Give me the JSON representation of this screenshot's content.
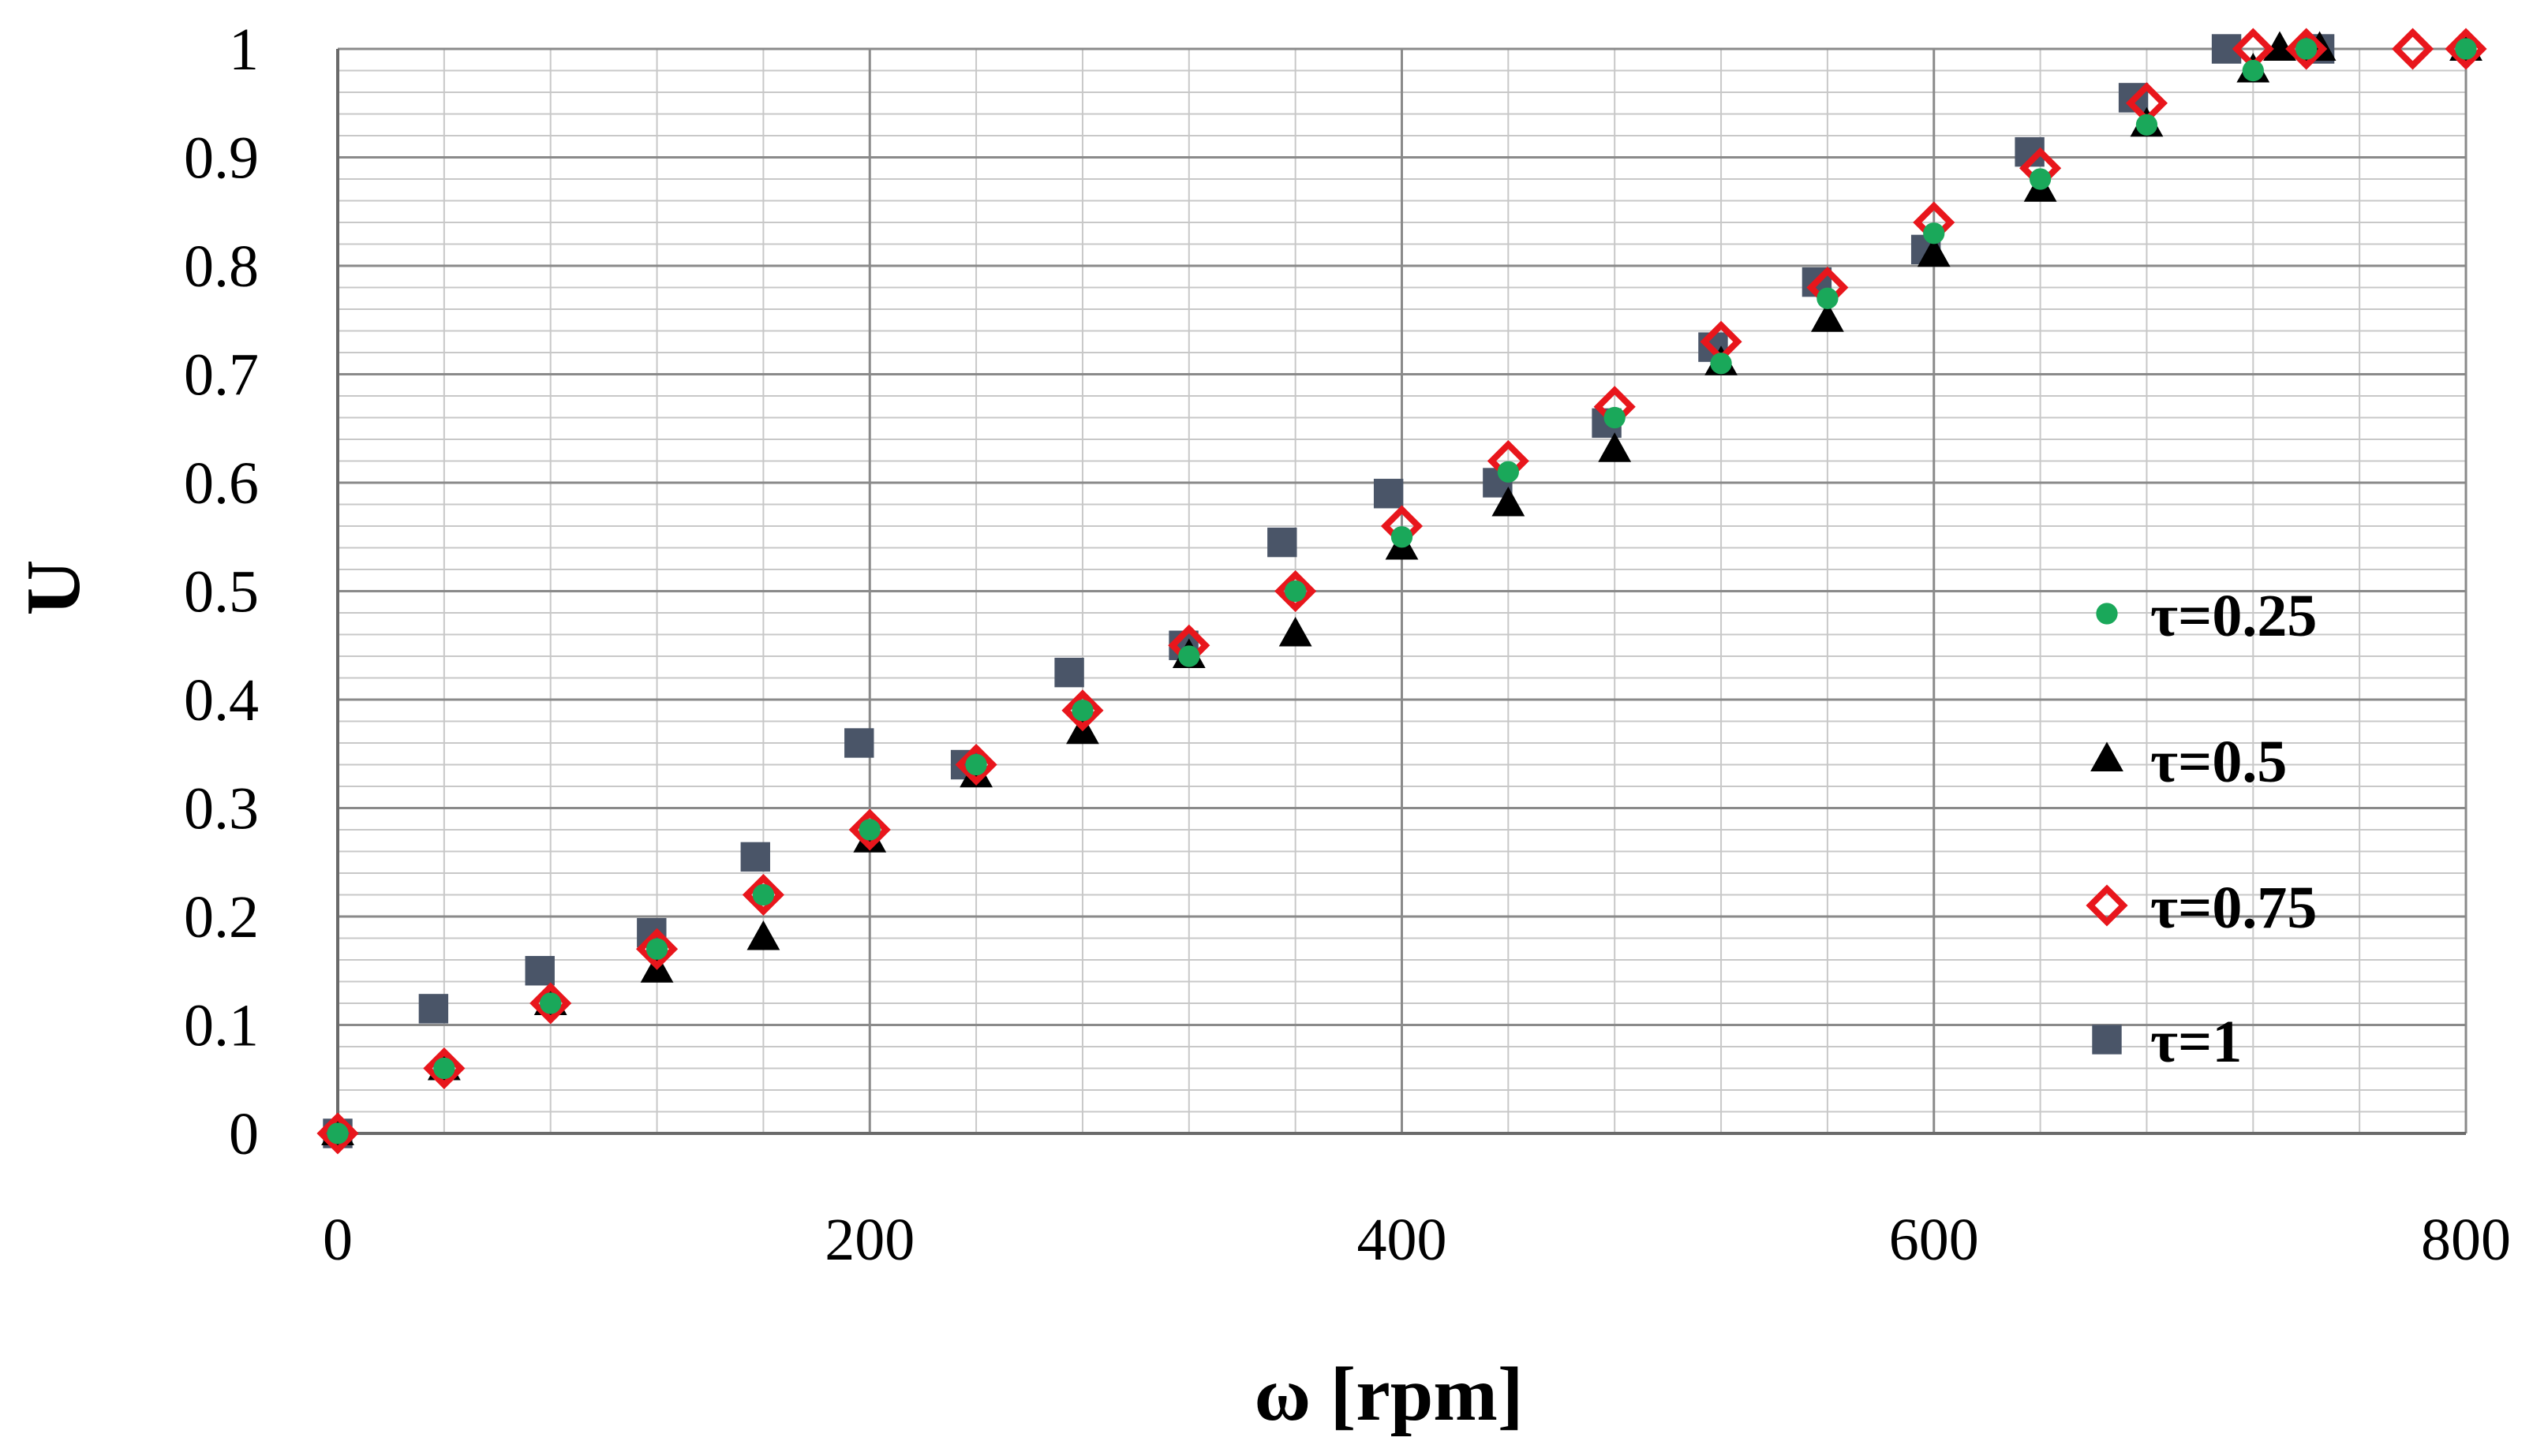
{
  "chart_data": {
    "type": "scatter",
    "title": "",
    "xlabel": "ω [rpm]",
    "ylabel": "U",
    "xlim": [
      0,
      800
    ],
    "ylim": [
      0,
      1
    ],
    "x_ticks": [
      0,
      200,
      400,
      600,
      800
    ],
    "y_ticks": [
      0,
      0.1,
      0.2,
      0.3,
      0.4,
      0.5,
      0.6,
      0.7,
      0.8,
      0.9,
      1
    ],
    "x_tick_labels": [
      "0",
      "200",
      "400",
      "600",
      "800"
    ],
    "y_tick_labels": [
      "0",
      "0.1",
      "0.2",
      "0.3",
      "0.4",
      "0.5",
      "0.6",
      "0.7",
      "0.8",
      "0.9",
      "1"
    ],
    "grid": true,
    "legend_position": "right",
    "series": [
      {
        "name": "τ=0.25",
        "marker": "circle",
        "color": "#1aa85a",
        "x": [
          0,
          40,
          80,
          120,
          160,
          200,
          240,
          280,
          320,
          360,
          400,
          440,
          480,
          520,
          560,
          600,
          640,
          680,
          720,
          740,
          800
        ],
        "y": [
          0,
          0.06,
          0.12,
          0.17,
          0.22,
          0.28,
          0.34,
          0.39,
          0.44,
          0.5,
          0.55,
          0.61,
          0.66,
          0.71,
          0.77,
          0.83,
          0.88,
          0.93,
          0.98,
          1.0,
          1.0
        ]
      },
      {
        "name": "τ=0.5",
        "marker": "triangle",
        "color": "#000000",
        "x": [
          0,
          40,
          80,
          120,
          160,
          200,
          240,
          280,
          320,
          360,
          400,
          440,
          480,
          520,
          560,
          600,
          640,
          680,
          720,
          730,
          745,
          800
        ],
        "y": [
          0,
          0.06,
          0.12,
          0.15,
          0.18,
          0.27,
          0.33,
          0.37,
          0.44,
          0.46,
          0.54,
          0.58,
          0.63,
          0.71,
          0.75,
          0.81,
          0.87,
          0.93,
          0.98,
          1.0,
          1.0,
          1.0
        ]
      },
      {
        "name": "τ=0.75",
        "marker": "diamond-open",
        "color": "#e8161c",
        "x": [
          0,
          40,
          80,
          120,
          160,
          200,
          240,
          280,
          320,
          360,
          400,
          440,
          480,
          520,
          560,
          600,
          640,
          680,
          720,
          740,
          780,
          800
        ],
        "y": [
          0,
          0.06,
          0.12,
          0.17,
          0.22,
          0.28,
          0.34,
          0.39,
          0.45,
          0.5,
          0.56,
          0.62,
          0.67,
          0.73,
          0.78,
          0.84,
          0.89,
          0.95,
          1.0,
          1.0,
          1.0,
          1.0
        ]
      },
      {
        "name": "τ=1",
        "marker": "square",
        "color": "#4a5568",
        "x": [
          0,
          36,
          76,
          118,
          157,
          196,
          236,
          275,
          318,
          355,
          395,
          436,
          477,
          517,
          556,
          597,
          636,
          675,
          710,
          745
        ],
        "y": [
          0,
          0.115,
          0.15,
          0.185,
          0.255,
          0.36,
          0.34,
          0.425,
          0.45,
          0.545,
          0.59,
          0.6,
          0.655,
          0.725,
          0.785,
          0.815,
          0.905,
          0.955,
          1.0,
          1.0
        ]
      }
    ]
  }
}
